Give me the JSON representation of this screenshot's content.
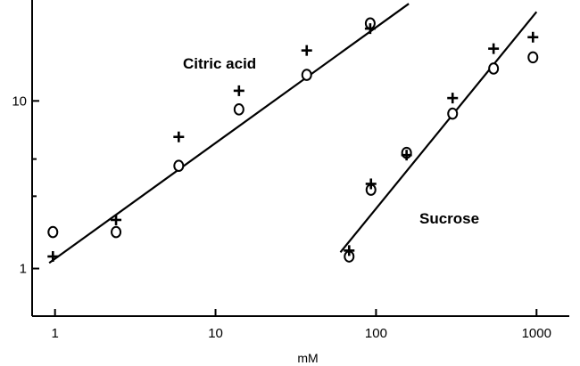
{
  "chart_data": {
    "type": "scatter",
    "x_scale": "log",
    "y_scale": "log",
    "xlim": [
      0.72,
      1600
    ],
    "ylim": [
      0.52,
      40
    ],
    "xlabel": "mM",
    "ylabel": "",
    "x_ticks": [
      {
        "value": 1,
        "label": "1"
      },
      {
        "value": 10,
        "label": "10"
      },
      {
        "value": 100,
        "label": "100"
      },
      {
        "value": 1000,
        "label": "1000"
      }
    ],
    "y_ticks": [
      {
        "value": 1,
        "label": "1"
      },
      {
        "value": 10,
        "label": "10"
      }
    ],
    "y_minor_ticks": [
      2.7,
      4.5
    ],
    "series": [
      {
        "name": "Citric acid",
        "marker_sets": [
          {
            "marker": "circle",
            "points": [
              [
                0.97,
                1.65
              ],
              [
                2.4,
                1.65
              ],
              [
                5.9,
                4.1
              ],
              [
                14,
                8.9
              ],
              [
                37,
                14.3
              ],
              [
                92,
                29
              ]
            ]
          },
          {
            "marker": "plus",
            "points": [
              [
                0.97,
                1.18
              ],
              [
                2.4,
                1.95
              ],
              [
                5.9,
                6.1
              ],
              [
                14,
                11.5
              ],
              [
                37,
                20
              ],
              [
                92,
                27
              ]
            ]
          }
        ],
        "fit_line": {
          "x": [
            0.92,
            160
          ],
          "y": [
            1.08,
            38
          ]
        }
      },
      {
        "name": "Sucrose",
        "marker_sets": [
          {
            "marker": "circle",
            "points": [
              [
                68,
                1.18
              ],
              [
                93,
                2.95
              ],
              [
                155,
                4.9
              ],
              [
                300,
                8.4
              ],
              [
                540,
                15.6
              ],
              [
                950,
                18.2
              ]
            ]
          },
          {
            "marker": "plus",
            "points": [
              [
                68,
                1.28
              ],
              [
                93,
                3.2
              ],
              [
                155,
                4.75
              ],
              [
                300,
                10.4
              ],
              [
                540,
                20.5
              ],
              [
                950,
                24
              ]
            ]
          }
        ],
        "fit_line": {
          "x": [
            60,
            1000
          ],
          "y": [
            1.25,
            34
          ]
        }
      }
    ],
    "annotations": [
      "Citric acid",
      "Sucrose"
    ]
  }
}
